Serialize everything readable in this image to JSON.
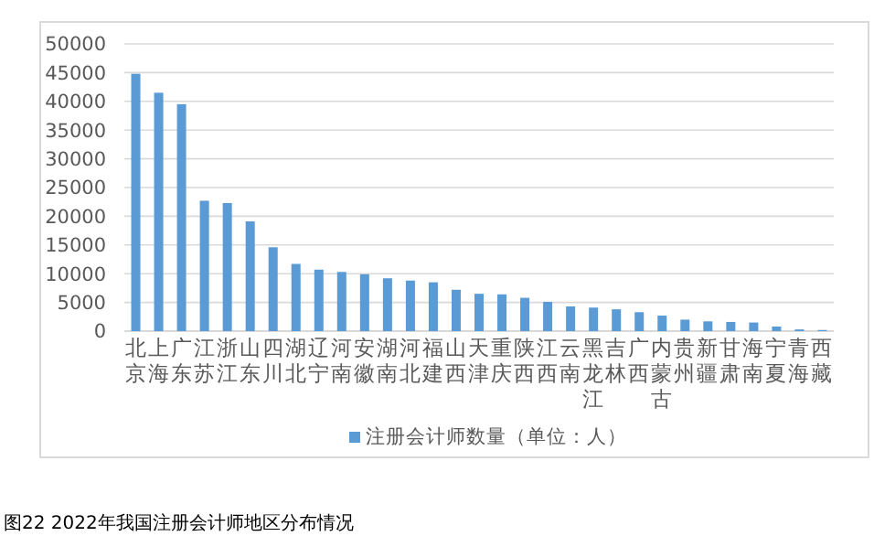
{
  "chart_data": {
    "type": "bar",
    "title": "图22 2022年我国注册会计师地区分布情况",
    "categories": [
      "北京",
      "上海",
      "广东",
      "江苏",
      "浙江",
      "山东",
      "四川",
      "湖北",
      "辽宁",
      "河南",
      "安徽",
      "湖南",
      "河北",
      "福建",
      "山西",
      "天津",
      "重庆",
      "陕西",
      "江西",
      "云南",
      "黑龙江",
      "吉林",
      "广西",
      "内蒙古",
      "贵州",
      "新疆",
      "甘肃",
      "海南",
      "宁夏",
      "青海",
      "西藏"
    ],
    "series": [
      {
        "name": "注册会计师数量（单位：人）",
        "color": "#5b9bd5",
        "values": [
          44800,
          41500,
          39500,
          22700,
          22300,
          19100,
          14600,
          11700,
          10700,
          10300,
          9900,
          9200,
          8800,
          8500,
          7200,
          6500,
          6400,
          5800,
          5100,
          4300,
          4100,
          3800,
          3300,
          2700,
          2000,
          1700,
          1600,
          1500,
          800,
          300,
          200
        ]
      }
    ],
    "ylim": [
      0,
      50000
    ],
    "yticks": [
      0,
      5000,
      10000,
      15000,
      20000,
      25000,
      30000,
      35000,
      40000,
      45000,
      50000
    ],
    "grid": "y",
    "legend": "bottom"
  }
}
